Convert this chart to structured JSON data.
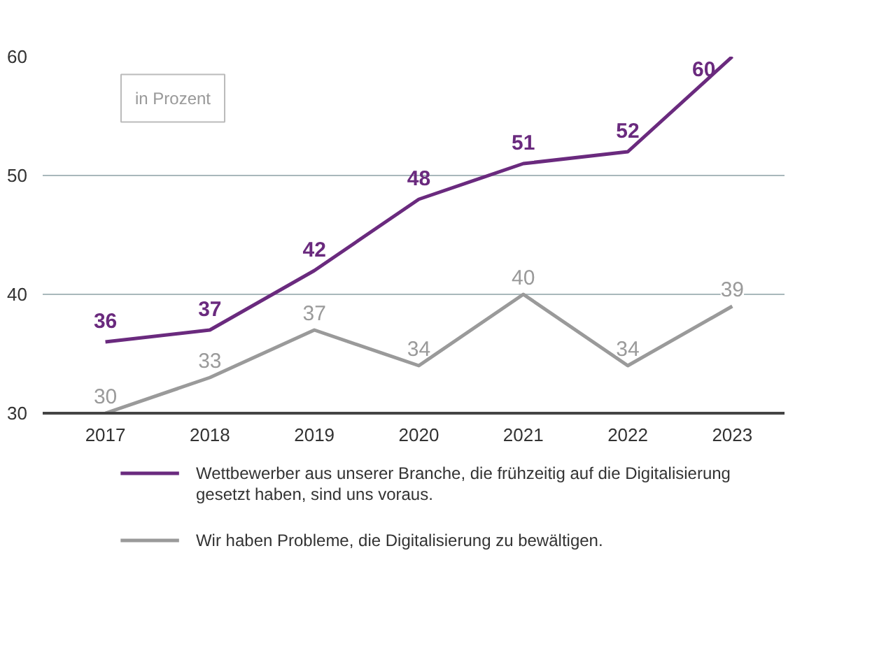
{
  "chart_data": {
    "type": "line",
    "categories": [
      "2017",
      "2018",
      "2019",
      "2020",
      "2021",
      "2022",
      "2023"
    ],
    "series": [
      {
        "name": "Wettbewerber aus unserer Branche, die frühzeitig auf die Digitalisierung gesetzt haben, sind uns voraus.",
        "color": "#6a2a7e",
        "values": [
          36,
          37,
          42,
          48,
          51,
          52,
          60
        ]
      },
      {
        "name": "Wir haben Probleme, die Digitalisierung zu bewältigen.",
        "color": "#9a9a9a",
        "values": [
          30,
          33,
          37,
          34,
          40,
          34,
          39
        ]
      }
    ],
    "ylim": [
      30,
      60
    ],
    "yticks": [
      30,
      40,
      50,
      60
    ],
    "grid": "y",
    "legend": "bottom",
    "data_labels": true,
    "marker": "none",
    "line_style": "solid",
    "annotations": [
      "in Prozent"
    ]
  }
}
